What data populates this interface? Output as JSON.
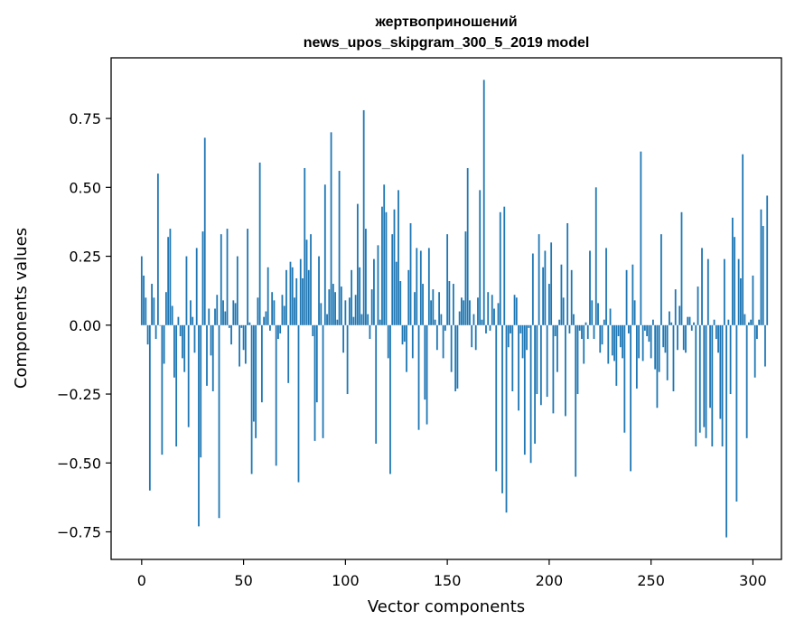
{
  "chart_data": {
    "type": "bar",
    "title_line1": "жертвоприношений",
    "title_line2": "news_upos_skipgram_300_5_2019 model",
    "xlabel": "Vector components",
    "ylabel": "Components values",
    "xlim": [
      -15,
      314
    ],
    "ylim": [
      -0.85,
      0.97
    ],
    "xticks": [
      0,
      50,
      100,
      150,
      200,
      250,
      300
    ],
    "yticks": [
      -0.75,
      -0.5,
      -0.25,
      0.0,
      0.25,
      0.5,
      0.75
    ],
    "ytick_labels": [
      "−0.75",
      "−0.50",
      "−0.25",
      "0.00",
      "0.25",
      "0.50",
      "0.75"
    ],
    "bar_color": "#1f77b4",
    "grid": false,
    "values": [
      0.25,
      0.18,
      0.1,
      -0.07,
      -0.6,
      0.15,
      0.1,
      -0.05,
      0.55,
      0.0,
      -0.47,
      -0.14,
      0.12,
      0.32,
      0.35,
      0.07,
      -0.19,
      -0.44,
      0.03,
      -0.04,
      -0.12,
      -0.17,
      0.25,
      -0.37,
      0.09,
      0.03,
      -0.1,
      0.28,
      -0.73,
      -0.48,
      0.34,
      0.68,
      -0.22,
      0.06,
      -0.11,
      -0.24,
      0.06,
      0.11,
      -0.7,
      0.33,
      0.09,
      0.05,
      0.35,
      -0.01,
      -0.07,
      0.09,
      0.08,
      0.25,
      -0.15,
      -0.01,
      -0.09,
      -0.14,
      0.35,
      0.01,
      -0.54,
      -0.35,
      -0.41,
      0.1,
      0.59,
      -0.28,
      0.03,
      0.05,
      0.21,
      -0.02,
      0.12,
      0.09,
      -0.51,
      -0.05,
      -0.03,
      0.11,
      0.07,
      0.2,
      -0.21,
      0.23,
      0.21,
      0.1,
      0.17,
      -0.57,
      0.24,
      0.17,
      0.57,
      0.31,
      0.2,
      0.33,
      -0.04,
      -0.42,
      -0.28,
      0.25,
      0.08,
      -0.41,
      0.51,
      0.04,
      0.13,
      0.7,
      0.15,
      0.12,
      0.02,
      0.56,
      0.14,
      -0.1,
      0.09,
      -0.25,
      0.1,
      0.2,
      0.03,
      0.11,
      0.44,
      0.21,
      0.04,
      0.78,
      0.35,
      0.04,
      -0.05,
      0.13,
      0.24,
      -0.43,
      0.29,
      0.02,
      0.43,
      0.51,
      0.41,
      -0.12,
      -0.54,
      0.33,
      0.42,
      0.23,
      0.49,
      0.16,
      -0.07,
      -0.06,
      -0.17,
      0.2,
      0.37,
      -0.12,
      0.12,
      0.28,
      -0.38,
      0.27,
      0.15,
      -0.27,
      -0.36,
      0.28,
      0.09,
      0.13,
      0.02,
      -0.09,
      0.12,
      0.04,
      -0.12,
      -0.02,
      0.33,
      0.16,
      -0.17,
      0.15,
      -0.24,
      -0.23,
      0.05,
      0.1,
      0.09,
      0.34,
      0.57,
      0.09,
      -0.08,
      0.04,
      -0.09,
      0.1,
      0.49,
      0.02,
      0.89,
      -0.03,
      0.12,
      -0.02,
      0.11,
      0.06,
      -0.53,
      0.08,
      0.41,
      -0.61,
      0.43,
      -0.68,
      -0.08,
      -0.03,
      -0.24,
      0.11,
      0.1,
      -0.31,
      -0.03,
      -0.12,
      -0.47,
      -0.09,
      -0.01,
      -0.5,
      0.26,
      -0.43,
      -0.25,
      0.33,
      -0.29,
      0.21,
      0.27,
      -0.26,
      0.15,
      0.3,
      -0.32,
      -0.04,
      -0.17,
      0.02,
      0.22,
      0.1,
      -0.33,
      0.37,
      -0.03,
      0.2,
      0.04,
      -0.55,
      -0.25,
      -0.02,
      -0.05,
      -0.14,
      0.01,
      -0.05,
      0.27,
      0.09,
      -0.05,
      0.5,
      0.08,
      -0.1,
      -0.07,
      0.02,
      0.28,
      -0.14,
      0.06,
      -0.11,
      -0.13,
      -0.22,
      -0.04,
      -0.08,
      -0.12,
      -0.39,
      0.2,
      -0.03,
      -0.53,
      0.22,
      0.09,
      -0.23,
      -0.12,
      0.63,
      -0.13,
      -0.02,
      -0.04,
      -0.06,
      -0.12,
      0.02,
      -0.16,
      -0.3,
      -0.17,
      0.33,
      -0.08,
      -0.1,
      -0.2,
      0.05,
      0.01,
      -0.24,
      0.13,
      -0.09,
      0.07,
      0.41,
      -0.09,
      -0.1,
      0.03,
      0.03,
      -0.02,
      0.01,
      -0.44,
      0.14,
      -0.39,
      0.28,
      -0.37,
      -0.41,
      0.24,
      -0.3,
      -0.44,
      0.02,
      -0.05,
      -0.1,
      -0.34,
      -0.44,
      0.24,
      -0.77,
      0.02,
      -0.25,
      0.39,
      0.32,
      -0.64,
      0.24,
      0.17,
      0.62,
      0.04,
      -0.41,
      0.01,
      0.02,
      0.18,
      -0.19,
      -0.05,
      0.02,
      0.42,
      0.36,
      -0.15,
      0.47
    ]
  }
}
